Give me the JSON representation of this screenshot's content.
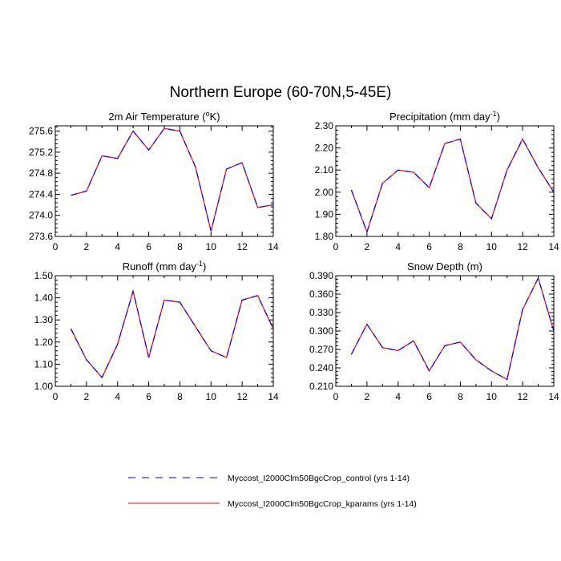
{
  "figure": {
    "title": "Northern Europe (60-70N,5-45E)"
  },
  "legend": {
    "entries": [
      {
        "label": "Myccost_I2000Clm50BgcCrop_control (yrs 1-14)",
        "color": "#0000ff",
        "style": "dashed"
      },
      {
        "label": "Myccost_I2000Clm50BgcCrop_kparams (yrs 1-14)",
        "color": "#ff0000",
        "style": "solid"
      }
    ]
  },
  "chart_data": [
    {
      "type": "line",
      "title": "2m Air Temperature (",
      "title_sup": "o",
      "title_end": "K)",
      "xlim": [
        0,
        14
      ],
      "ylim": [
        273.6,
        275.7
      ],
      "x_ticks": [
        "0",
        "2",
        "4",
        "6",
        "8",
        "10",
        "12",
        "14"
      ],
      "y_ticks": [
        "273.6",
        "274.0",
        "274.4",
        "274.8",
        "275.2",
        "275.6"
      ],
      "x": [
        1,
        2,
        3,
        4,
        5,
        6,
        7,
        8,
        9,
        10,
        11,
        12,
        13,
        14
      ],
      "series": [
        {
          "name": "Myccost_I2000Clm50BgcCrop_control (yrs 1-14)",
          "values": [
            274.38,
            274.46,
            275.13,
            275.08,
            275.6,
            275.24,
            275.65,
            275.6,
            274.92,
            273.7,
            274.88,
            275.0,
            274.15,
            274.2
          ]
        },
        {
          "name": "Myccost_I2000Clm50BgcCrop_kparams (yrs 1-14)",
          "values": [
            274.38,
            274.46,
            275.13,
            275.08,
            275.6,
            275.24,
            275.65,
            275.6,
            274.92,
            273.7,
            274.88,
            275.0,
            274.15,
            274.2
          ]
        }
      ]
    },
    {
      "type": "line",
      "title": "Precipitation (mm day",
      "title_sup": "-1",
      "title_end": ")",
      "xlim": [
        0,
        14
      ],
      "ylim": [
        1.8,
        2.3
      ],
      "x_ticks": [
        "0",
        "2",
        "4",
        "6",
        "8",
        "10",
        "12",
        "14"
      ],
      "y_ticks": [
        "1.80",
        "1.90",
        "2.00",
        "2.10",
        "2.20",
        "2.30"
      ],
      "x": [
        1,
        2,
        3,
        4,
        5,
        6,
        7,
        8,
        9,
        10,
        11,
        12,
        13,
        14
      ],
      "series": [
        {
          "name": "Myccost_I2000Clm50BgcCrop_control (yrs 1-14)",
          "values": [
            2.01,
            1.82,
            2.04,
            2.1,
            2.09,
            2.02,
            2.22,
            2.24,
            1.95,
            1.88,
            2.1,
            2.24,
            2.11,
            2.0
          ]
        },
        {
          "name": "Myccost_I2000Clm50BgcCrop_kparams (yrs 1-14)",
          "values": [
            2.01,
            1.82,
            2.04,
            2.1,
            2.09,
            2.02,
            2.22,
            2.24,
            1.95,
            1.88,
            2.1,
            2.24,
            2.11,
            2.0
          ]
        }
      ]
    },
    {
      "type": "line",
      "title": "Runoff (mm day",
      "title_sup": "-1",
      "title_end": ")",
      "xlim": [
        0,
        14
      ],
      "ylim": [
        1.0,
        1.5
      ],
      "x_ticks": [
        "0",
        "2",
        "4",
        "6",
        "8",
        "10",
        "12",
        "14"
      ],
      "y_ticks": [
        "1.00",
        "1.10",
        "1.20",
        "1.30",
        "1.40",
        "1.50"
      ],
      "x": [
        1,
        2,
        3,
        4,
        5,
        6,
        7,
        8,
        9,
        10,
        11,
        12,
        13,
        14
      ],
      "series": [
        {
          "name": "Myccost_I2000Clm50BgcCrop_control (yrs 1-14)",
          "values": [
            1.26,
            1.12,
            1.04,
            1.19,
            1.43,
            1.13,
            1.39,
            1.38,
            1.27,
            1.16,
            1.13,
            1.39,
            1.41,
            1.26
          ]
        },
        {
          "name": "Myccost_I2000Clm50BgcCrop_kparams (yrs 1-14)",
          "values": [
            1.26,
            1.12,
            1.04,
            1.19,
            1.43,
            1.13,
            1.39,
            1.38,
            1.27,
            1.16,
            1.13,
            1.39,
            1.41,
            1.26
          ]
        }
      ]
    },
    {
      "type": "line",
      "title": "Snow Depth (m)",
      "title_sup": "",
      "title_end": "",
      "xlim": [
        0,
        14
      ],
      "ylim": [
        0.21,
        0.39
      ],
      "x_ticks": [
        "0",
        "2",
        "4",
        "6",
        "8",
        "10",
        "12",
        "14"
      ],
      "y_ticks": [
        "0.210",
        "0.240",
        "0.270",
        "0.300",
        "0.330",
        "0.360",
        "0.390"
      ],
      "x": [
        1,
        2,
        3,
        4,
        5,
        6,
        7,
        8,
        9,
        10,
        11,
        12,
        13,
        14
      ],
      "series": [
        {
          "name": "Myccost_I2000Clm50BgcCrop_control (yrs 1-14)",
          "values": [
            0.262,
            0.311,
            0.273,
            0.268,
            0.284,
            0.235,
            0.276,
            0.282,
            0.253,
            0.235,
            0.221,
            0.335,
            0.386,
            0.3
          ]
        },
        {
          "name": "Myccost_I2000Clm50BgcCrop_kparams (yrs 1-14)",
          "values": [
            0.262,
            0.311,
            0.273,
            0.268,
            0.284,
            0.235,
            0.276,
            0.282,
            0.253,
            0.235,
            0.221,
            0.335,
            0.386,
            0.3
          ]
        }
      ]
    }
  ]
}
